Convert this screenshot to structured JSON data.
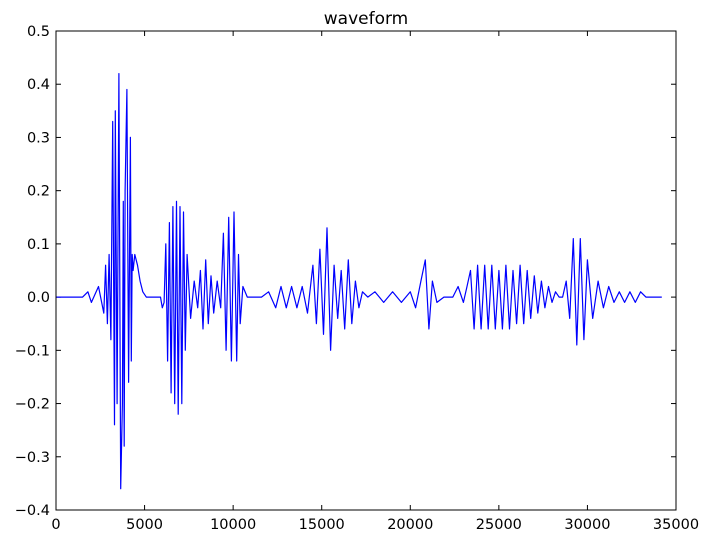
{
  "chart_data": {
    "type": "line",
    "title": "waveform",
    "xlabel": "",
    "ylabel": "",
    "xlim": [
      0,
      35000
    ],
    "ylim": [
      -0.4,
      0.5
    ],
    "x_ticks": [
      0,
      5000,
      10000,
      15000,
      20000,
      25000,
      30000,
      35000
    ],
    "x_tick_labels": [
      "0",
      "5000",
      "10000",
      "15000",
      "20000",
      "25000",
      "30000",
      "35000"
    ],
    "y_ticks": [
      -0.4,
      -0.3,
      -0.2,
      -0.1,
      0.0,
      0.1,
      0.2,
      0.3,
      0.4,
      0.5
    ],
    "y_tick_labels": [
      "−0.4",
      "−0.3",
      "−0.2",
      "−0.1",
      "0.0",
      "0.1",
      "0.2",
      "0.3",
      "0.4",
      "0.5"
    ],
    "grid": false,
    "line_color": "#0000ff",
    "series": [
      {
        "x": [
          0,
          1500,
          1800,
          2000,
          2400,
          2700,
          2800,
          2900,
          3000,
          3100,
          3200,
          3300,
          3350,
          3450,
          3550,
          3650,
          3750,
          3800,
          3850,
          3900,
          4000,
          4100,
          4200,
          4250,
          4300,
          4350,
          4450,
          4600,
          4750,
          4900,
          5100,
          5400,
          5700,
          5900,
          6000,
          6100,
          6200,
          6300,
          6400,
          6500,
          6600,
          6700,
          6800,
          6900,
          7000,
          7100,
          7200,
          7300,
          7400,
          7600,
          7800,
          8000,
          8150,
          8300,
          8450,
          8600,
          8750,
          8900,
          9100,
          9300,
          9450,
          9600,
          9750,
          9900,
          10050,
          10200,
          10300,
          10400,
          10550,
          10800,
          11200,
          11600,
          12000,
          12400,
          12700,
          13000,
          13300,
          13600,
          13900,
          14200,
          14500,
          14700,
          14900,
          15100,
          15300,
          15500,
          15700,
          15900,
          16100,
          16300,
          16500,
          16700,
          16900,
          17100,
          17300,
          17600,
          18000,
          18500,
          19000,
          19500,
          20000,
          20300,
          20600,
          20850,
          21050,
          21250,
          21500,
          21900,
          22200,
          22400,
          22700,
          23000,
          23200,
          23400,
          23600,
          23800,
          24000,
          24200,
          24400,
          24600,
          24800,
          25000,
          25200,
          25400,
          25600,
          25800,
          26000,
          26200,
          26400,
          26600,
          26800,
          27000,
          27200,
          27400,
          27600,
          27800,
          28000,
          28200,
          28400,
          28600,
          28800,
          29000,
          29200,
          29400,
          29600,
          29800,
          30000,
          30300,
          30600,
          30900,
          31200,
          31500,
          31800,
          32100,
          32400,
          32700,
          33000,
          33300,
          33600,
          33900,
          34200
        ],
        "y": [
          0.0,
          0.0,
          0.01,
          -0.01,
          0.02,
          -0.03,
          0.06,
          -0.05,
          0.08,
          -0.08,
          0.33,
          -0.24,
          0.35,
          -0.2,
          0.42,
          -0.36,
          -0.2,
          0.18,
          -0.28,
          0.2,
          0.39,
          -0.16,
          0.3,
          -0.12,
          0.08,
          0.05,
          0.08,
          0.06,
          0.03,
          0.01,
          0.0,
          0.0,
          0.0,
          0.0,
          -0.02,
          -0.01,
          0.1,
          -0.12,
          0.14,
          -0.18,
          0.17,
          -0.2,
          0.18,
          -0.22,
          0.17,
          -0.2,
          0.16,
          -0.1,
          0.08,
          -0.04,
          0.03,
          -0.02,
          0.05,
          -0.06,
          0.07,
          -0.05,
          0.04,
          -0.03,
          0.03,
          -0.02,
          0.12,
          -0.1,
          0.15,
          -0.12,
          0.16,
          -0.12,
          0.08,
          -0.05,
          0.02,
          0.0,
          0.0,
          0.0,
          0.01,
          -0.02,
          0.02,
          -0.02,
          0.02,
          -0.02,
          0.02,
          -0.03,
          0.06,
          -0.05,
          0.09,
          -0.07,
          0.13,
          -0.1,
          0.06,
          -0.04,
          0.05,
          -0.06,
          0.07,
          -0.05,
          0.03,
          -0.02,
          0.01,
          0.0,
          0.01,
          -0.01,
          0.01,
          -0.01,
          0.01,
          -0.02,
          0.03,
          0.07,
          -0.06,
          0.03,
          -0.01,
          0.0,
          0.0,
          0.0,
          0.02,
          -0.01,
          0.02,
          0.05,
          -0.06,
          0.06,
          -0.06,
          0.06,
          -0.06,
          0.06,
          -0.06,
          0.05,
          -0.06,
          0.06,
          -0.06,
          0.05,
          -0.05,
          0.06,
          -0.05,
          0.05,
          -0.04,
          0.04,
          -0.03,
          0.03,
          -0.02,
          0.02,
          -0.01,
          0.01,
          0.0,
          0.0,
          0.03,
          -0.04,
          0.11,
          -0.09,
          0.11,
          -0.08,
          0.07,
          -0.04,
          0.03,
          -0.02,
          0.02,
          -0.01,
          0.01,
          -0.01,
          0.01,
          -0.01,
          0.01,
          0.0,
          0.0,
          0.0,
          0.0
        ]
      }
    ]
  }
}
